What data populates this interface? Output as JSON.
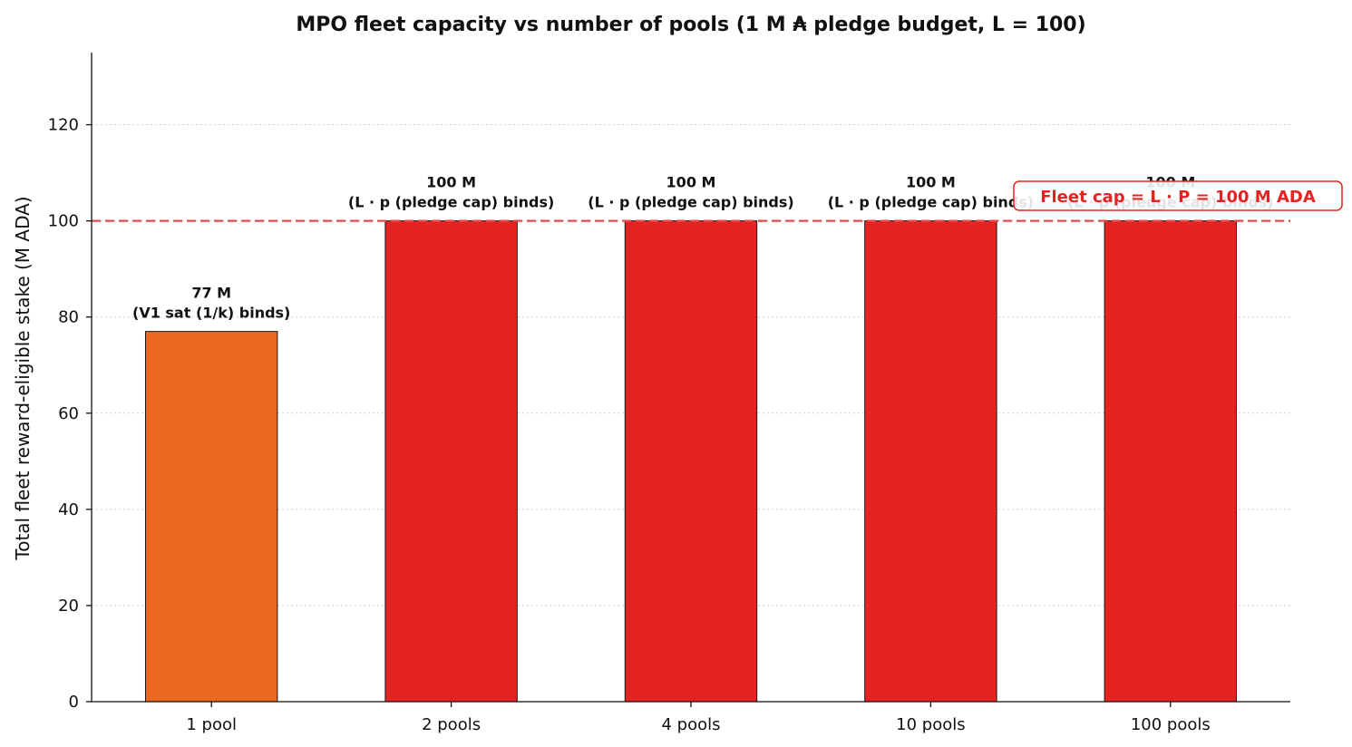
{
  "chart_data": {
    "type": "bar",
    "title": "MPO fleet capacity vs number of pools  (1 M ₳ pledge budget, L = 100)",
    "xlabel": "",
    "ylabel": "Total fleet reward-eligible stake  (M ADA)",
    "ylim": [
      0,
      135
    ],
    "yticks": [
      0,
      20,
      40,
      60,
      80,
      100,
      120
    ],
    "grid": "y-dotted",
    "categories": [
      "1 pool",
      "2 pools",
      "4 pools",
      "10 pools",
      "100 pools"
    ],
    "values": [
      77,
      100,
      100,
      100,
      100
    ],
    "value_labels": [
      "77 M",
      "100 M",
      "100 M",
      "100 M",
      "100 M"
    ],
    "annotations": [
      "(V1 sat (1/k) binds)",
      "(L · p (pledge cap) binds)",
      "(L · p (pledge cap) binds)",
      "(L · p (pledge cap) binds)",
      "(L · p (pledge cap) binds)"
    ],
    "colors": [
      "#ec671f",
      "#e42423",
      "#e42423",
      "#e42423",
      "#e42423"
    ],
    "reference_line": {
      "value": 100,
      "label": "Fleet cap = L · P = 100 M ADA",
      "color": "#e54a4a",
      "label_color": "#e42423"
    }
  }
}
